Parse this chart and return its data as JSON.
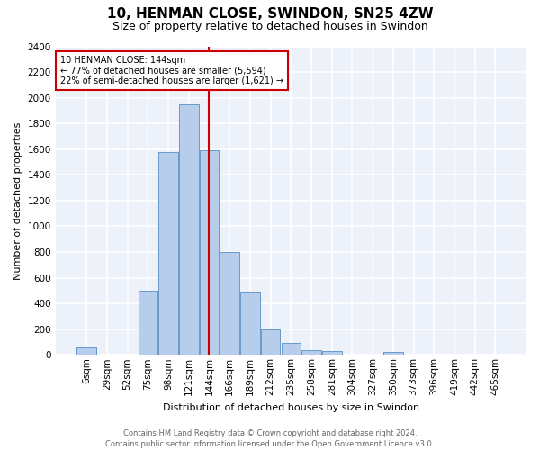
{
  "title": "10, HENMAN CLOSE, SWINDON, SN25 4ZW",
  "subtitle": "Size of property relative to detached houses in Swindon",
  "xlabel": "Distribution of detached houses by size in Swindon",
  "ylabel": "Number of detached properties",
  "categories": [
    "6sqm",
    "29sqm",
    "52sqm",
    "75sqm",
    "98sqm",
    "121sqm",
    "144sqm",
    "166sqm",
    "189sqm",
    "212sqm",
    "235sqm",
    "258sqm",
    "281sqm",
    "304sqm",
    "327sqm",
    "350sqm",
    "373sqm",
    "396sqm",
    "419sqm",
    "442sqm",
    "465sqm"
  ],
  "bar_heights": [
    60,
    0,
    0,
    500,
    1580,
    1950,
    1590,
    800,
    490,
    195,
    90,
    35,
    30,
    0,
    0,
    25,
    0,
    0,
    0,
    0,
    0
  ],
  "bar_color": "#b8ccec",
  "bar_edge_color": "#6699cc",
  "marker_idx": 6,
  "marker_color": "#cc0000",
  "annotation_line1": "10 HENMAN CLOSE: 144sqm",
  "annotation_line2": "← 77% of detached houses are smaller (5,594)",
  "annotation_line3": "22% of semi-detached houses are larger (1,621) →",
  "annotation_box_color": "#cc0000",
  "ylim": [
    0,
    2400
  ],
  "yticks": [
    0,
    200,
    400,
    600,
    800,
    1000,
    1200,
    1400,
    1600,
    1800,
    2000,
    2200,
    2400
  ],
  "background_color": "#edf1fa",
  "grid_color": "#ffffff",
  "footer_line1": "Contains HM Land Registry data © Crown copyright and database right 2024.",
  "footer_line2": "Contains public sector information licensed under the Open Government Licence v3.0.",
  "title_fontsize": 11,
  "subtitle_fontsize": 9,
  "ylabel_fontsize": 8,
  "xlabel_fontsize": 8,
  "tick_fontsize": 7.5,
  "footer_fontsize": 6
}
